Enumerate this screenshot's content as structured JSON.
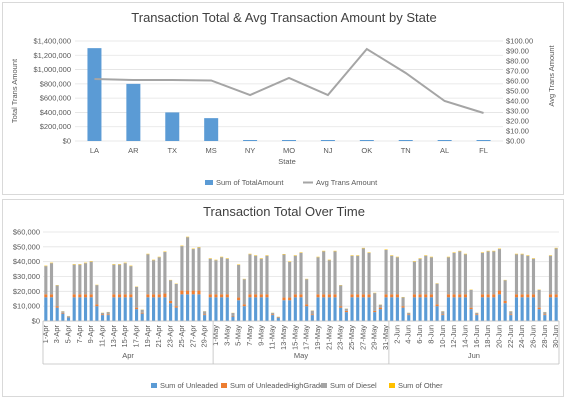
{
  "chart_data": [
    {
      "type": "bar",
      "title": "Transaction Total & Avg Transaction  Amount by State",
      "xlabel": "State",
      "ylabel": "Total Trans Amount",
      "ylabel_right": "Avg Trans Amount",
      "categories": [
        "LA",
        "AR",
        "TX",
        "MS",
        "NY",
        "MO",
        "NJ",
        "OK",
        "TN",
        "AL",
        "FL"
      ],
      "ylim": [
        0,
        1400000
      ],
      "y_ticks": [
        "$0",
        "$200,000",
        "$400,000",
        "$600,000",
        "$800,000",
        "$1,000,000",
        "$1,200,000",
        "$1,400,000"
      ],
      "y2lim": [
        0,
        100
      ],
      "y2_ticks": [
        "$0.00",
        "$10.00",
        "$20.00",
        "$30.00",
        "$40.00",
        "$50.00",
        "$60.00",
        "$70.00",
        "$80.00",
        "$90.00",
        "$100.00"
      ],
      "grid": true,
      "legend_position": "bottom",
      "series": [
        {
          "name": "Sum of TotalAmount",
          "type": "bar",
          "axis": "left",
          "color": "#5b9bd5",
          "values": [
            1300000,
            800000,
            400000,
            320000,
            8000,
            6000,
            7000,
            9000,
            6000,
            5000,
            6000
          ]
        },
        {
          "name": "Avg Trans Amount",
          "type": "line",
          "axis": "right",
          "color": "#a5a5a5",
          "values": [
            62,
            61,
            61,
            60.5,
            46,
            63,
            46,
            92,
            68,
            40,
            28
          ]
        }
      ]
    },
    {
      "type": "bar",
      "stacked": true,
      "title": "Transaction Total Over Time",
      "ylim": [
        0,
        60000
      ],
      "y_ticks": [
        "$0",
        "$10,000",
        "$20,000",
        "$30,000",
        "$40,000",
        "$50,000",
        "$60,000"
      ],
      "grid": true,
      "legend_position": "bottom",
      "x_tick_labels": [
        "1-Apr",
        "3-Apr",
        "5-Apr",
        "7-Apr",
        "9-Apr",
        "11-Apr",
        "13-Apr",
        "15-Apr",
        "17-Apr",
        "19-Apr",
        "21-Apr",
        "23-Apr",
        "25-Apr",
        "27-Apr",
        "29-Apr",
        "1-May",
        "3-May",
        "5-May",
        "7-May",
        "9-May",
        "11-May",
        "13-May",
        "15-May",
        "17-May",
        "19-May",
        "21-May",
        "23-May",
        "25-May",
        "27-May",
        "29-May",
        "31-May",
        "2-Jun",
        "4-Jun",
        "6-Jun",
        "8-Jun",
        "10-Jun",
        "12-Jun",
        "14-Jun",
        "16-Jun",
        "18-Jun",
        "20-Jun",
        "22-Jun",
        "24-Jun",
        "26-Jun",
        "28-Jun",
        "30-Jun"
      ],
      "month_groups": [
        {
          "label": "Apr",
          "days": 30
        },
        {
          "label": "May",
          "days": 31
        },
        {
          "label": "Jun",
          "days": 30
        }
      ],
      "series_colors": [
        "#5b9bd5",
        "#ed7d31",
        "#a5a5a5",
        "#ffc000"
      ],
      "series": [
        {
          "name": "Sum of Unleaded",
          "values": [
            16000,
            16000,
            9000,
            5000,
            2500,
            16000,
            16000,
            16000,
            16000,
            10000,
            4000,
            4000,
            16000,
            16000,
            16000,
            16000,
            8000,
            5000,
            16000,
            16000,
            16000,
            16000,
            12000,
            9000,
            18000,
            18000,
            18000,
            18000,
            4000,
            16000,
            16000,
            16000,
            16000,
            3000,
            14000,
            10000,
            16000,
            16000,
            16000,
            16000,
            4000,
            2000,
            14000,
            14000,
            16000,
            16000,
            10000,
            4000,
            16000,
            16000,
            16000,
            16000,
            9000,
            6000,
            16000,
            16000,
            16000,
            16000,
            6000,
            8000,
            16000,
            16000,
            16000,
            9000,
            4000,
            16000,
            16000,
            16000,
            16000,
            10000,
            4000,
            16000,
            16000,
            16000,
            16000,
            8000,
            4000,
            16000,
            16000,
            16000,
            18000,
            12000,
            4000,
            16000,
            16000,
            16000,
            16000,
            8000,
            4000,
            16000,
            16000
          ]
        },
        {
          "name": "Sum of UnleadedHighGrade",
          "values": [
            2000,
            2000,
            1000,
            500,
            300,
            2000,
            2000,
            2000,
            2000,
            1200,
            500,
            500,
            2000,
            2000,
            2000,
            2000,
            1000,
            600,
            2000,
            2000,
            2000,
            2500,
            1500,
            1000,
            2500,
            2500,
            2500,
            2500,
            500,
            2000,
            2000,
            2000,
            2000,
            400,
            1800,
            1200,
            2000,
            2000,
            2000,
            2000,
            500,
            300,
            1800,
            1800,
            2000,
            2000,
            1200,
            500,
            2000,
            2000,
            2000,
            2000,
            1000,
            800,
            2000,
            2000,
            2000,
            2000,
            800,
            1000,
            2000,
            2000,
            2000,
            1000,
            500,
            2000,
            2000,
            2000,
            2000,
            1200,
            500,
            2000,
            2000,
            2000,
            2000,
            1000,
            500,
            2000,
            2000,
            2000,
            2500,
            1500,
            500,
            2000,
            2000,
            2000,
            2000,
            1000,
            500,
            2000,
            2000
          ]
        },
        {
          "name": "Sum of Diesel",
          "values": [
            19000,
            21000,
            14000,
            1000,
            500,
            20000,
            20000,
            21000,
            22000,
            13000,
            1000,
            1500,
            20000,
            20000,
            21000,
            19000,
            14000,
            2000,
            27000,
            23000,
            25000,
            28000,
            14000,
            15000,
            30000,
            36000,
            28000,
            29000,
            2000,
            24000,
            23000,
            25000,
            24000,
            2000,
            22000,
            17000,
            27000,
            26000,
            24000,
            26000,
            1000,
            500,
            29000,
            24000,
            26000,
            28000,
            17000,
            2500,
            25000,
            29000,
            23000,
            29000,
            14000,
            1500,
            26000,
            26000,
            31000,
            28000,
            12000,
            2000,
            30000,
            26000,
            25000,
            6000,
            1000,
            22000,
            24000,
            26000,
            25000,
            14000,
            2000,
            25000,
            28000,
            29000,
            27000,
            12000,
            1000,
            28000,
            29000,
            29000,
            28000,
            14000,
            2000,
            27000,
            27000,
            26000,
            24000,
            12000,
            1500,
            26000,
            31000
          ]
        },
        {
          "name": "Sum of Other",
          "values": [
            300,
            300,
            200,
            100,
            100,
            300,
            300,
            300,
            300,
            200,
            100,
            100,
            300,
            300,
            300,
            300,
            200,
            100,
            300,
            300,
            300,
            300,
            200,
            200,
            300,
            300,
            300,
            300,
            100,
            300,
            300,
            300,
            300,
            100,
            300,
            200,
            300,
            300,
            300,
            300,
            100,
            100,
            300,
            300,
            300,
            300,
            200,
            100,
            300,
            300,
            300,
            300,
            200,
            100,
            300,
            300,
            300,
            300,
            200,
            100,
            300,
            300,
            300,
            200,
            100,
            300,
            300,
            300,
            300,
            200,
            100,
            300,
            300,
            300,
            300,
            200,
            100,
            300,
            300,
            300,
            300,
            200,
            100,
            300,
            300,
            300,
            300,
            200,
            100,
            300,
            300
          ]
        }
      ]
    }
  ]
}
